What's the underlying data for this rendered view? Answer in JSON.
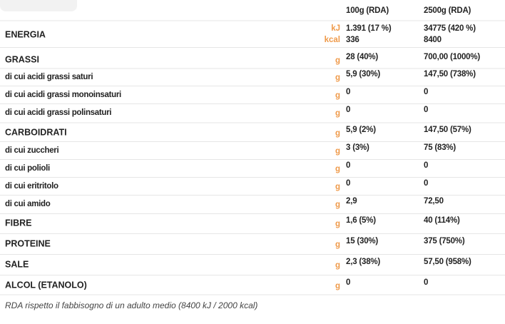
{
  "table": {
    "header": [
      "100g (RDA)",
      "2500g (RDA)"
    ],
    "rows": [
      {
        "label": "ENERGIA",
        "bold": true,
        "units": [
          "kJ",
          "kcal"
        ],
        "col1": [
          "1.391 (17 %)",
          "336"
        ],
        "col2": [
          "34775 (420 %)",
          "8400"
        ]
      },
      {
        "label": "GRASSI",
        "bold": true,
        "units": [
          "g"
        ],
        "col1": [
          "28 (40%)"
        ],
        "col2": [
          "700,00 (1000%)"
        ]
      },
      {
        "label": "di cui acidi grassi saturi",
        "bold": false,
        "units": [
          "g"
        ],
        "col1": [
          "5,9 (30%)"
        ],
        "col2": [
          "147,50  (738%)"
        ]
      },
      {
        "label": "di cui acidi grassi monoinsaturi",
        "bold": false,
        "units": [
          "g"
        ],
        "col1": [
          "0"
        ],
        "col2": [
          "0"
        ]
      },
      {
        "label": "di cui acidi grassi polinsaturi",
        "bold": false,
        "units": [
          "g"
        ],
        "col1": [
          "0"
        ],
        "col2": [
          "0"
        ]
      },
      {
        "label": "CARBOIDRATI",
        "bold": true,
        "units": [
          "g"
        ],
        "col1": [
          "5,9 (2%)"
        ],
        "col2": [
          "147,50 (57%)"
        ]
      },
      {
        "label": "di cui zuccheri",
        "bold": false,
        "units": [
          "g"
        ],
        "col1": [
          "3 (3%)"
        ],
        "col2": [
          "75 (83%)"
        ]
      },
      {
        "label": "di cui polioli",
        "bold": false,
        "units": [
          "g"
        ],
        "col1": [
          "0"
        ],
        "col2": [
          "0"
        ]
      },
      {
        "label": "di cui eritritolo",
        "bold": false,
        "units": [
          "g"
        ],
        "col1": [
          "0"
        ],
        "col2": [
          "0"
        ]
      },
      {
        "label": "di cui amido",
        "bold": false,
        "units": [
          "g"
        ],
        "col1": [
          "2,9"
        ],
        "col2": [
          "72,50"
        ]
      },
      {
        "label": "FIBRE",
        "bold": true,
        "units": [
          "g"
        ],
        "col1": [
          "1,6 (5%)"
        ],
        "col2": [
          "40 (114%)"
        ]
      },
      {
        "label": "PROTEINE",
        "bold": true,
        "units": [
          "g"
        ],
        "col1": [
          "15 (30%)"
        ],
        "col2": [
          "375 (750%)"
        ]
      },
      {
        "label": "SALE",
        "bold": true,
        "units": [
          "g"
        ],
        "col1": [
          "2,3 (38%)"
        ],
        "col2": [
          "57,50 (958%)"
        ]
      },
      {
        "label": "ALCOL (ETANOLO)",
        "bold": true,
        "units": [
          "g"
        ],
        "col1": [
          "0"
        ],
        "col2": [
          "0"
        ]
      }
    ]
  },
  "footnote": "RDA rispetto il fabbisogno di un adulto medio (8400 kJ / 2000 kcal)"
}
